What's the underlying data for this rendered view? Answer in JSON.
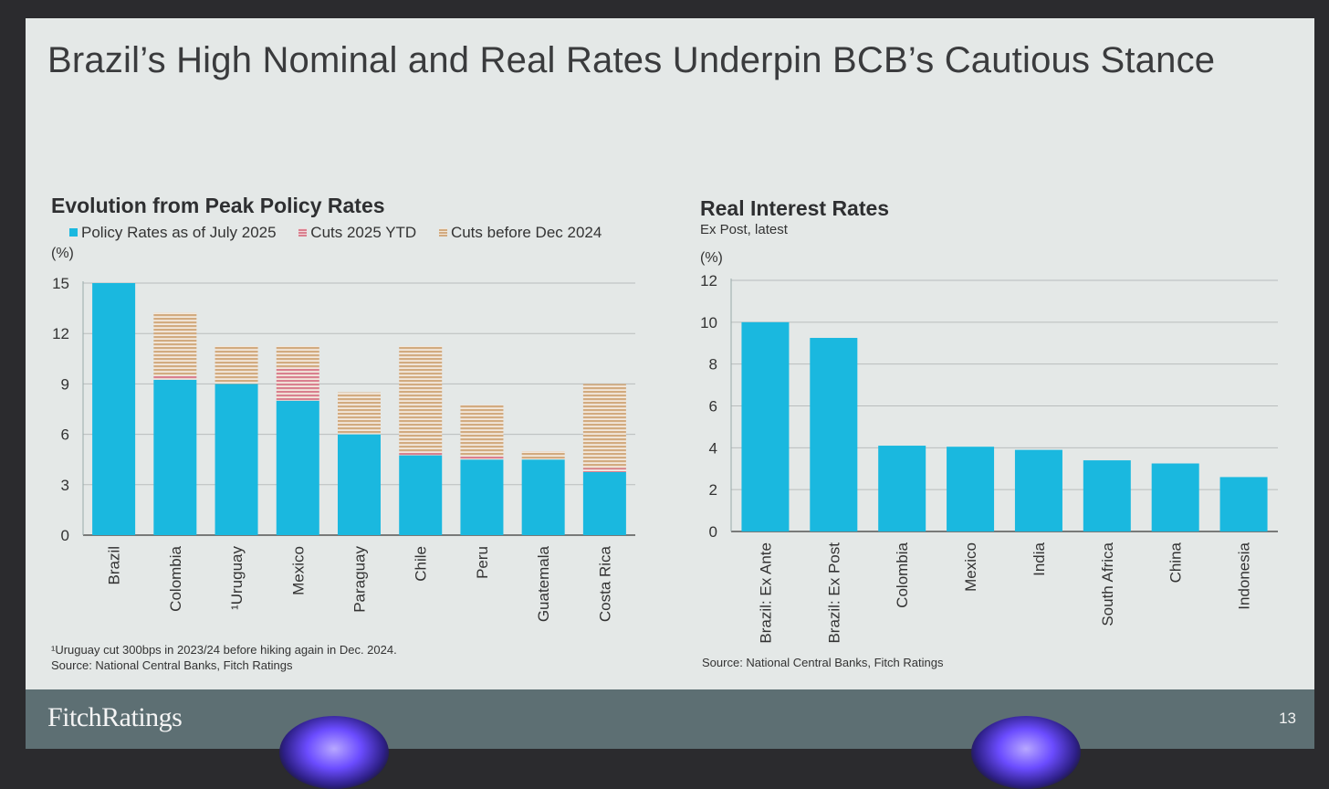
{
  "slide": {
    "title": "Brazil’s High Nominal and Real Rates Underpin BCB’s Cautious Stance",
    "page_number": "13",
    "brand": "FitchRatings"
  },
  "left": {
    "unit_label": "(%)",
    "footnote": "¹Uruguay cut 300bps in 2023/24 before hiking again in Dec. 2024.",
    "source": "Source: National Central Banks, Fitch Ratings"
  },
  "right": {
    "unit_label": "(%)",
    "subtitle": "Ex Post, latest",
    "source": "Source: National Central Banks, Fitch Ratings"
  },
  "colors": {
    "policy": "#1ab8df",
    "ytd": "#d9808f",
    "before": "#d2ab80",
    "grid": "#b9bdbd"
  },
  "chart_data": [
    {
      "type": "bar",
      "stacked": true,
      "title": "Evolution from Peak Policy Rates",
      "ylabel": "(%)",
      "ylim": [
        0,
        15
      ],
      "yticks": [
        0,
        3,
        6,
        9,
        12,
        15
      ],
      "categories": [
        "Brazil",
        "Colombia",
        "¹Uruguay",
        "Mexico",
        "Paraguay",
        "Chile",
        "Peru",
        "Guatemala",
        "Costa Rica"
      ],
      "series": [
        {
          "name": "Policy Rates as of July 2025",
          "values": [
            15.0,
            9.25,
            9.0,
            8.0,
            6.0,
            4.75,
            4.5,
            4.5,
            3.75
          ]
        },
        {
          "name": "Cuts 2025 YTD",
          "values": [
            0,
            0.25,
            0,
            2.0,
            0,
            0.25,
            0.25,
            0,
            0.25
          ]
        },
        {
          "name": "Cuts before Dec 2024",
          "values": [
            0,
            3.75,
            2.25,
            1.25,
            2.5,
            6.25,
            3.0,
            0.5,
            5.0
          ]
        }
      ],
      "legend_position": "top"
    },
    {
      "type": "bar",
      "title": "Real Interest Rates",
      "subtitle": "Ex Post, latest",
      "ylabel": "(%)",
      "ylim": [
        0,
        12
      ],
      "yticks": [
        0,
        2,
        4,
        6,
        8,
        10,
        12
      ],
      "categories": [
        "Brazil: Ex Ante",
        "Brazil: Ex Post",
        "Colombia",
        "Mexico",
        "India",
        "South Africa",
        "China",
        "Indonesia"
      ],
      "values": [
        10.0,
        9.25,
        4.1,
        4.05,
        3.9,
        3.4,
        3.25,
        2.6
      ]
    }
  ]
}
